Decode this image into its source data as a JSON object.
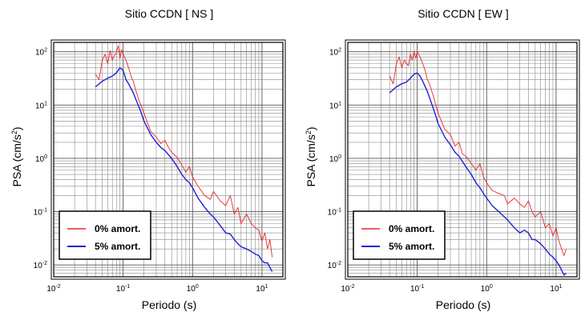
{
  "chart_data": [
    {
      "type": "line",
      "title": "Sitio CCDN [ NS ]",
      "xlabel": "Periodo (s)",
      "ylabel_base": "PSA (cm/s",
      "ylabel_exp": "2",
      "ylabel_close": ")",
      "x_scale": "log",
      "y_scale": "log",
      "xlim": [
        0.01,
        20
      ],
      "ylim": [
        0.006,
        150
      ],
      "grid": true,
      "legend_position": "bottom-left",
      "x_ticks": [
        {
          "base": "10",
          "exp": "-2",
          "value": 0.01
        },
        {
          "base": "10",
          "exp": "-1",
          "value": 0.1
        },
        {
          "base": "10",
          "exp": "0",
          "value": 1
        },
        {
          "base": "10",
          "exp": "1",
          "value": 10
        }
      ],
      "y_ticks": [
        {
          "base": "10",
          "exp": "-2",
          "value": 0.01
        },
        {
          "base": "10",
          "exp": "-1",
          "value": 0.1
        },
        {
          "base": "10",
          "exp": "0",
          "value": 1
        },
        {
          "base": "10",
          "exp": "1",
          "value": 10
        },
        {
          "base": "10",
          "exp": "2",
          "value": 100
        }
      ],
      "series": [
        {
          "name": "0% amort.",
          "color": "#e8262a",
          "x": [
            0.04,
            0.045,
            0.05,
            0.055,
            0.06,
            0.065,
            0.07,
            0.075,
            0.08,
            0.085,
            0.09,
            0.095,
            0.1,
            0.11,
            0.12,
            0.13,
            0.14,
            0.15,
            0.17,
            0.2,
            0.25,
            0.3,
            0.35,
            0.4,
            0.45,
            0.5,
            0.6,
            0.7,
            0.8,
            0.9,
            1.0,
            1.2,
            1.5,
            1.8,
            2.0,
            2.5,
            3.0,
            3.5,
            4.0,
            4.5,
            5.0,
            6.0,
            7.0,
            8.0,
            9.0,
            10.0,
            11.0,
            12.0,
            13.0,
            14.0
          ],
          "y": [
            38,
            30,
            70,
            90,
            60,
            105,
            70,
            85,
            95,
            130,
            75,
            110,
            90,
            70,
            50,
            35,
            28,
            20,
            12,
            7,
            3.2,
            2.5,
            1.9,
            2.2,
            1.6,
            1.3,
            1.05,
            0.75,
            0.55,
            0.7,
            0.45,
            0.3,
            0.2,
            0.17,
            0.24,
            0.16,
            0.13,
            0.2,
            0.09,
            0.12,
            0.06,
            0.09,
            0.06,
            0.05,
            0.045,
            0.028,
            0.04,
            0.02,
            0.03,
            0.014
          ]
        },
        {
          "name": "5% amort.",
          "color": "#1f1fd6",
          "x": [
            0.04,
            0.05,
            0.06,
            0.07,
            0.08,
            0.09,
            0.1,
            0.11,
            0.12,
            0.14,
            0.16,
            0.18,
            0.2,
            0.25,
            0.3,
            0.35,
            0.4,
            0.5,
            0.6,
            0.7,
            0.8,
            0.9,
            1.0,
            1.2,
            1.5,
            1.8,
            2.0,
            2.5,
            3.0,
            3.5,
            4.0,
            4.5,
            5.0,
            6.0,
            7.0,
            8.0,
            9.0,
            10.0,
            11.0,
            12.0,
            13.0,
            14.0
          ],
          "y": [
            22,
            28,
            32,
            35,
            40,
            50,
            45,
            30,
            25,
            17,
            11,
            7.5,
            5,
            2.8,
            2.0,
            1.6,
            1.4,
            1.0,
            0.7,
            0.5,
            0.4,
            0.35,
            0.28,
            0.18,
            0.12,
            0.09,
            0.08,
            0.055,
            0.04,
            0.038,
            0.03,
            0.025,
            0.022,
            0.02,
            0.018,
            0.016,
            0.015,
            0.012,
            0.011,
            0.011,
            0.009,
            0.0075
          ]
        }
      ]
    },
    {
      "type": "line",
      "title": "Sitio CCDN [ EW ]",
      "xlabel": "Periodo (s)",
      "ylabel_base": "PSA (cm/s",
      "ylabel_exp": "2",
      "ylabel_close": ")",
      "x_scale": "log",
      "y_scale": "log",
      "xlim": [
        0.01,
        20
      ],
      "ylim": [
        0.006,
        150
      ],
      "grid": true,
      "legend_position": "bottom-left",
      "x_ticks": [
        {
          "base": "10",
          "exp": "-2",
          "value": 0.01
        },
        {
          "base": "10",
          "exp": "-1",
          "value": 0.1
        },
        {
          "base": "10",
          "exp": "0",
          "value": 1
        },
        {
          "base": "10",
          "exp": "1",
          "value": 10
        }
      ],
      "y_ticks": [
        {
          "base": "10",
          "exp": "-2",
          "value": 0.01
        },
        {
          "base": "10",
          "exp": "-1",
          "value": 0.1
        },
        {
          "base": "10",
          "exp": "0",
          "value": 1
        },
        {
          "base": "10",
          "exp": "1",
          "value": 10
        },
        {
          "base": "10",
          "exp": "2",
          "value": 100
        }
      ],
      "series": [
        {
          "name": "0% amort.",
          "color": "#e8262a",
          "x": [
            0.04,
            0.045,
            0.05,
            0.055,
            0.06,
            0.065,
            0.07,
            0.075,
            0.08,
            0.085,
            0.09,
            0.095,
            0.1,
            0.11,
            0.12,
            0.13,
            0.14,
            0.15,
            0.17,
            0.2,
            0.25,
            0.3,
            0.35,
            0.4,
            0.45,
            0.5,
            0.6,
            0.7,
            0.8,
            0.9,
            1.0,
            1.2,
            1.5,
            1.8,
            2.0,
            2.5,
            3.0,
            3.5,
            4.0,
            4.5,
            5.0,
            6.0,
            7.0,
            8.0,
            9.0,
            10.0,
            11.0,
            12.0,
            13.0,
            14.0
          ],
          "y": [
            35,
            25,
            60,
            80,
            50,
            70,
            60,
            55,
            90,
            70,
            100,
            75,
            100,
            80,
            60,
            45,
            30,
            25,
            15,
            7,
            3.5,
            2.8,
            1.7,
            2.0,
            1.2,
            1.1,
            0.8,
            0.6,
            0.8,
            0.45,
            0.35,
            0.25,
            0.22,
            0.2,
            0.14,
            0.18,
            0.14,
            0.12,
            0.16,
            0.1,
            0.08,
            0.1,
            0.05,
            0.06,
            0.035,
            0.05,
            0.028,
            0.02,
            0.015,
            0.02
          ]
        },
        {
          "name": "5% amort.",
          "color": "#1f1fd6",
          "x": [
            0.04,
            0.05,
            0.06,
            0.07,
            0.08,
            0.09,
            0.1,
            0.11,
            0.12,
            0.14,
            0.16,
            0.18,
            0.2,
            0.25,
            0.3,
            0.35,
            0.4,
            0.5,
            0.6,
            0.7,
            0.8,
            0.9,
            1.0,
            1.2,
            1.5,
            1.8,
            2.0,
            2.5,
            3.0,
            3.5,
            4.0,
            4.5,
            5.0,
            6.0,
            7.0,
            8.0,
            9.0,
            10.0,
            11.0,
            12.0,
            13.0,
            14.0
          ],
          "y": [
            17,
            22,
            25,
            27,
            32,
            38,
            40,
            35,
            28,
            18,
            11,
            7,
            4.5,
            2.5,
            1.8,
            1.3,
            1.1,
            0.7,
            0.5,
            0.35,
            0.28,
            0.22,
            0.18,
            0.13,
            0.1,
            0.08,
            0.07,
            0.05,
            0.04,
            0.045,
            0.04,
            0.03,
            0.03,
            0.025,
            0.02,
            0.016,
            0.014,
            0.012,
            0.01,
            0.008,
            0.0065,
            0.007
          ]
        }
      ]
    }
  ]
}
